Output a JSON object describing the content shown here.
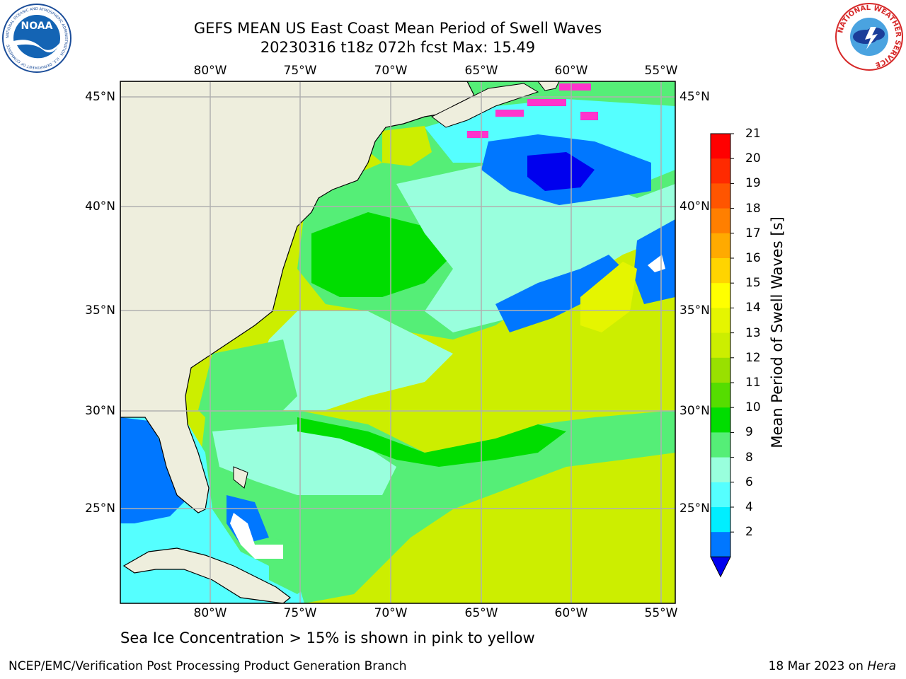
{
  "title": {
    "line1": "GEFS MEAN US East Coast Mean Period of Swell Waves",
    "line2": "20230316 t18z 072h fcst   Max: 15.49"
  },
  "map": {
    "lon_labels": [
      "80°W",
      "75°W",
      "70°W",
      "65°W",
      "60°W",
      "55°W"
    ],
    "lat_labels": [
      "45°N",
      "40°N",
      "35°N",
      "30°N",
      "25°N"
    ],
    "land_color": "#eeeedd",
    "grid_color": "#b0b0b0"
  },
  "colorbar": {
    "label": "Mean Period of Swell Waves [s]",
    "ticks": [
      "21",
      "20",
      "19",
      "18",
      "17",
      "16",
      "15",
      "14",
      "13",
      "12",
      "11",
      "10",
      "9",
      "8",
      "6",
      "4",
      "2"
    ],
    "colors_top_to_bottom": [
      "#ff0000",
      "#ff2a00",
      "#ff5500",
      "#ff7f00",
      "#ffaa00",
      "#ffd400",
      "#ffff00",
      "#e5f500",
      "#ccee00",
      "#99e000",
      "#55dd00",
      "#00dd00",
      "#55ee77",
      "#99ffdd",
      "#55ffff",
      "#00eeff",
      "#0077ff"
    ],
    "extend_color": "#0000ee"
  },
  "subtitle": "Sea Ice Concentration > 15% is shown in pink to yellow",
  "footer": {
    "left": "NCEP/EMC/Verification Post Processing Product Generation Branch",
    "right_date": "18 Mar 2023 on",
    "right_machine": "Hera"
  },
  "logos": {
    "noaa_text": "NOAA",
    "noaa_ring_text": "NATIONAL OCEANIC AND ATMOSPHERIC ADMINISTRATION · U.S. DEPARTMENT OF COMMERCE",
    "nws_ring_text": "NATIONAL WEATHER SERVICE"
  }
}
